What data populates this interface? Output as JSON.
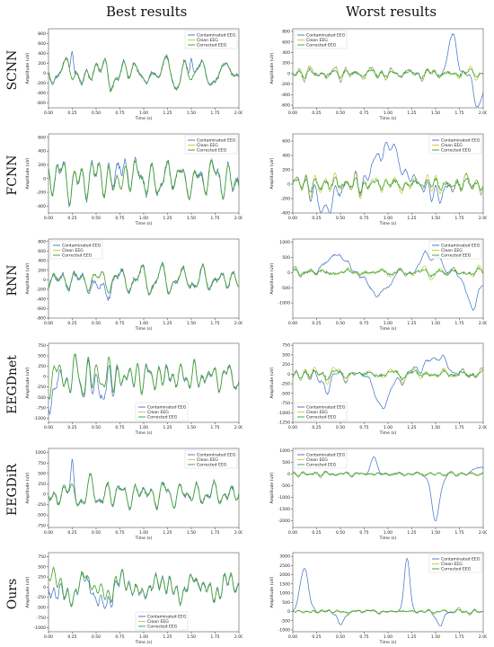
{
  "headers": {
    "best": "Best results",
    "worst": "Worst results"
  },
  "rows": [
    "SCNN",
    "FCNN",
    "RNN",
    "EEGDnet",
    "EEGDiR",
    "Ours"
  ],
  "colors": {
    "contaminated": "#3a6fc4",
    "clean": "#c8c82a",
    "corrected": "#2e9e3a"
  },
  "chart_data": [
    {
      "id": "scnn-best",
      "type": "line",
      "xlabel": "Time (s)",
      "ylabel": "Amplitude (uV)",
      "xlim": [
        0,
        2
      ],
      "ylim": [
        -700,
        900
      ],
      "yticks": [
        -600,
        -400,
        -200,
        0,
        200,
        400,
        600,
        800
      ],
      "xticks": [
        "0.00",
        "0.25",
        "0.50",
        "0.75",
        "1.00",
        "1.25",
        "1.50",
        "1.75",
        "2.00"
      ],
      "legend": "top-right",
      "series": [
        {
          "name": "Contaminated EEG"
        },
        {
          "name": "Clean EEG"
        },
        {
          "name": "Corrected EEG"
        }
      ],
      "seed": 11,
      "scale": 260,
      "spikes": [
        [
          0.25,
          550
        ],
        [
          1.5,
          450
        ]
      ]
    },
    {
      "id": "scnn-worst",
      "type": "line",
      "xlabel": "Time (s)",
      "ylabel": "Amplitude (uV)",
      "xlim": [
        0,
        2
      ],
      "ylim": [
        -650,
        850
      ],
      "yticks": [
        -600,
        -400,
        -200,
        0,
        200,
        400,
        600,
        800
      ],
      "xticks": [
        "0.00",
        "0.25",
        "0.50",
        "0.75",
        "1.00",
        "1.25",
        "1.50",
        "1.75",
        "2.00"
      ],
      "legend": "top-left",
      "series": [
        {
          "name": "Contaminated EEG"
        },
        {
          "name": "Clean EEG"
        },
        {
          "name": "Corrected EEG"
        }
      ],
      "seed": 23,
      "scale": 90,
      "bumps": [
        [
          1.68,
          0.06,
          750
        ],
        [
          1.95,
          0.08,
          -550
        ]
      ]
    },
    {
      "id": "fcnn-best",
      "type": "line",
      "xlabel": "Time (s)",
      "ylabel": "Amplitude (uV)",
      "xlim": [
        0,
        2
      ],
      "ylim": [
        -500,
        650
      ],
      "yticks": [
        -400,
        -200,
        0,
        200,
        400,
        600
      ],
      "xticks": [
        "0.00",
        "0.25",
        "0.50",
        "0.75",
        "1.00",
        "1.25",
        "1.50",
        "1.75",
        "2.00"
      ],
      "legend": "top-right",
      "series": [
        {
          "name": "Contaminated EEG"
        },
        {
          "name": "Clean EEG"
        },
        {
          "name": "Corrected EEG"
        }
      ],
      "seed": 37,
      "scale": 280,
      "bumps": [
        [
          0.75,
          0.05,
          250
        ]
      ]
    },
    {
      "id": "fcnn-worst",
      "type": "line",
      "xlabel": "Time (s)",
      "ylabel": "Amplitude (uV)",
      "xlim": [
        0,
        2
      ],
      "ylim": [
        -400,
        700
      ],
      "yticks": [
        -400,
        -200,
        0,
        200,
        400,
        600
      ],
      "xticks": [
        "0.00",
        "0.25",
        "0.50",
        "0.75",
        "1.00",
        "1.25",
        "1.50",
        "1.75",
        "2.00"
      ],
      "legend": "top-right",
      "series": [
        {
          "name": "Contaminated EEG"
        },
        {
          "name": "Clean EEG"
        },
        {
          "name": "Corrected EEG"
        }
      ],
      "seed": 41,
      "scale": 90,
      "bumps": [
        [
          0.35,
          0.12,
          -350
        ],
        [
          1.0,
          0.18,
          520
        ],
        [
          1.5,
          0.12,
          -150
        ]
      ]
    },
    {
      "id": "rnn-best",
      "type": "line",
      "xlabel": "Time (s)",
      "ylabel": "Amplitude (uV)",
      "xlim": [
        0,
        2
      ],
      "ylim": [
        -800,
        850
      ],
      "yticks": [
        -800,
        -600,
        -400,
        -200,
        0,
        200,
        400,
        600,
        800
      ],
      "xticks": [
        "0.00",
        "0.25",
        "0.50",
        "0.75",
        "1.00",
        "1.25",
        "1.50",
        "1.75",
        "2.00"
      ],
      "legend": "top-left",
      "series": [
        {
          "name": "Contaminated EEG"
        },
        {
          "name": "Clean EEG"
        },
        {
          "name": "Corrected EEG"
        }
      ],
      "seed": 53,
      "scale": 300,
      "bumps": [
        [
          0.55,
          0.1,
          -250
        ]
      ]
    },
    {
      "id": "rnn-worst",
      "type": "line",
      "xlabel": "Time (s)",
      "ylabel": "Amplitude (uV)",
      "xlim": [
        0,
        2
      ],
      "ylim": [
        -1500,
        1100
      ],
      "yticks": [
        -1000,
        -500,
        0,
        500,
        1000
      ],
      "xticks": [
        "0.00",
        "0.25",
        "0.50",
        "0.75",
        "1.00",
        "1.25",
        "1.50",
        "1.75",
        "2.00"
      ],
      "legend": "top-right",
      "series": [
        {
          "name": "Contaminated EEG"
        },
        {
          "name": "Clean EEG"
        },
        {
          "name": "Corrected EEG"
        }
      ],
      "seed": 67,
      "scale": 140,
      "bumps": [
        [
          0.45,
          0.12,
          650
        ],
        [
          0.9,
          0.12,
          -800
        ],
        [
          1.45,
          0.12,
          650
        ],
        [
          1.9,
          0.1,
          -1100
        ]
      ]
    },
    {
      "id": "eegdnet-best",
      "type": "line",
      "xlabel": "Time (s)",
      "ylabel": "Amplitude (uV)",
      "xlim": [
        0,
        2
      ],
      "ylim": [
        -1100,
        800
      ],
      "yticks": [
        -1000,
        -750,
        -500,
        -250,
        0,
        250,
        500,
        750
      ],
      "xticks": [
        "0.00",
        "0.25",
        "0.50",
        "0.75",
        "1.00",
        "1.25",
        "1.50",
        "1.75",
        "2.00"
      ],
      "legend": "bottom-center",
      "series": [
        {
          "name": "Contaminated EEG"
        },
        {
          "name": "Clean EEG"
        },
        {
          "name": "Corrected EEG"
        }
      ],
      "seed": 71,
      "scale": 330,
      "bumps": [
        [
          0.05,
          0.06,
          -500
        ],
        [
          0.55,
          0.12,
          -300
        ]
      ]
    },
    {
      "id": "eegdnet-worst",
      "type": "line",
      "xlabel": "Time (s)",
      "ylabel": "Amplitude (uV)",
      "xlim": [
        0,
        2
      ],
      "ylim": [
        -1250,
        800
      ],
      "yticks": [
        -1250,
        -1000,
        -750,
        -500,
        -250,
        0,
        250,
        500,
        750
      ],
      "xticks": [
        "0.00",
        "0.25",
        "0.50",
        "0.75",
        "1.00",
        "1.25",
        "1.50",
        "1.75",
        "2.00"
      ],
      "legend": "bottom-left",
      "series": [
        {
          "name": "Contaminated EEG"
        },
        {
          "name": "Clean EEG"
        },
        {
          "name": "Corrected EEG"
        }
      ],
      "seed": 83,
      "scale": 130,
      "bumps": [
        [
          0.35,
          0.12,
          -250
        ],
        [
          0.95,
          0.12,
          -800
        ],
        [
          1.5,
          0.15,
          450
        ]
      ]
    },
    {
      "id": "eegdir-best",
      "type": "line",
      "xlabel": "Time (s)",
      "ylabel": "Amplitude (uV)",
      "xlim": [
        0,
        2
      ],
      "ylim": [
        -800,
        1100
      ],
      "yticks": [
        -750,
        -500,
        -250,
        0,
        250,
        500,
        750,
        1000
      ],
      "xticks": [
        "0.00",
        "0.25",
        "0.50",
        "0.75",
        "1.00",
        "1.25",
        "1.50",
        "1.75",
        "2.00"
      ],
      "legend": "top-right",
      "series": [
        {
          "name": "Contaminated EEG"
        },
        {
          "name": "Clean EEG"
        },
        {
          "name": "Corrected EEG"
        }
      ],
      "seed": 97,
      "scale": 330,
      "spikes": [
        [
          0.25,
          600
        ]
      ]
    },
    {
      "id": "eegdir-worst",
      "type": "line",
      "xlabel": "Time (s)",
      "ylabel": "Amplitude (uV)",
      "xlim": [
        0,
        2
      ],
      "ylim": [
        -2300,
        1100
      ],
      "yticks": [
        -2000,
        -1500,
        -1000,
        -500,
        0,
        500,
        1000
      ],
      "xticks": [
        "0.00",
        "0.25",
        "0.50",
        "0.75",
        "1.00",
        "1.25",
        "1.50",
        "1.75",
        "2.00"
      ],
      "legend": "top-left",
      "series": [
        {
          "name": "Contaminated EEG"
        },
        {
          "name": "Clean EEG"
        },
        {
          "name": "Corrected EEG"
        }
      ],
      "seed": 101,
      "scale": 110,
      "bumps": [
        [
          0.85,
          0.04,
          800
        ],
        [
          1.5,
          0.06,
          -2000
        ],
        [
          1.95,
          0.06,
          350
        ]
      ]
    },
    {
      "id": "ours-best",
      "type": "line",
      "xlabel": "Time (s)",
      "ylabel": "Amplitude (uV)",
      "xlim": [
        0,
        2
      ],
      "ylim": [
        -1100,
        850
      ],
      "yticks": [
        -1000,
        -750,
        -500,
        -250,
        0,
        250,
        500,
        750
      ],
      "xticks": [
        "0.00",
        "0.25",
        "0.50",
        "0.75",
        "1.00",
        "1.25",
        "1.50",
        "1.75",
        "2.00"
      ],
      "legend": "bottom-center",
      "series": [
        {
          "name": "Contaminated EEG"
        },
        {
          "name": "Clean EEG"
        },
        {
          "name": "Corrected EEG"
        }
      ],
      "seed": 113,
      "scale": 330,
      "bumps": [
        [
          0.05,
          0.06,
          -500
        ],
        [
          0.55,
          0.12,
          -300
        ]
      ]
    },
    {
      "id": "ours-worst",
      "type": "line",
      "xlabel": "Time (s)",
      "ylabel": "Amplitude (uV)",
      "xlim": [
        0,
        2
      ],
      "ylim": [
        -1100,
        3200
      ],
      "yticks": [
        -1000,
        -500,
        0,
        500,
        1000,
        1500,
        2000,
        2500,
        3000
      ],
      "xticks": [
        "0.00",
        "0.25",
        "0.50",
        "0.75",
        "1.00",
        "1.25",
        "1.50",
        "1.75",
        "2.00"
      ],
      "legend": "top-right",
      "series": [
        {
          "name": "Contaminated EEG"
        },
        {
          "name": "Clean EEG"
        },
        {
          "name": "Corrected EEG"
        }
      ],
      "seed": 127,
      "scale": 120,
      "bumps": [
        [
          0.12,
          0.06,
          2400
        ],
        [
          1.2,
          0.04,
          2900
        ],
        [
          0.5,
          0.05,
          -700
        ],
        [
          1.55,
          0.05,
          -800
        ]
      ]
    }
  ]
}
